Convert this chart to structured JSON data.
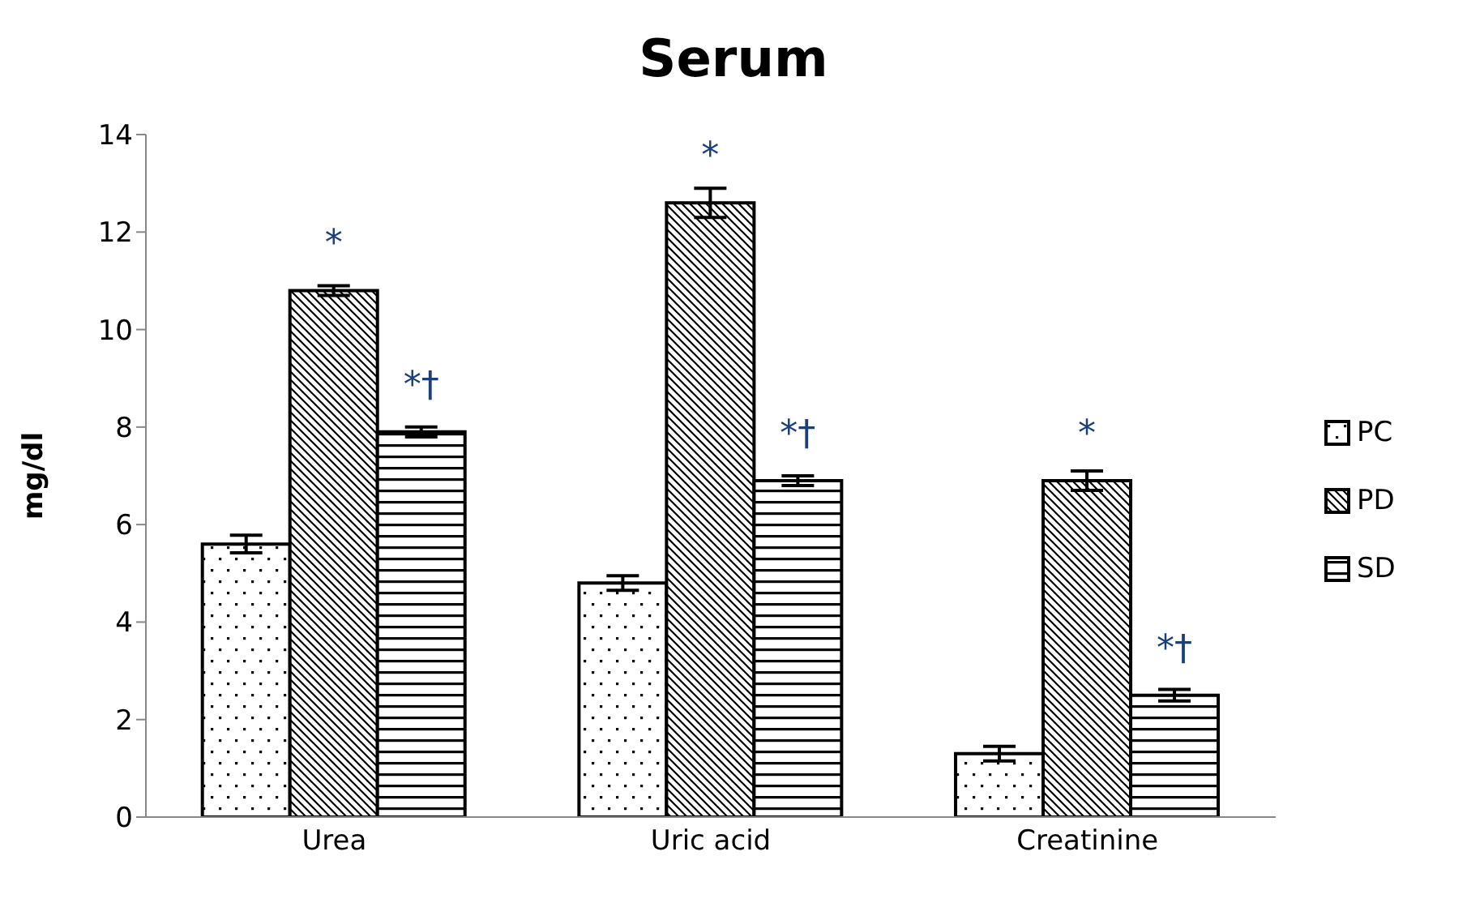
{
  "chart_data": {
    "type": "bar",
    "title": "Serum",
    "ylabel": "mg/dl",
    "categories": [
      "Urea",
      "Uric acid",
      "Creatinine"
    ],
    "series": [
      {
        "name": "PC",
        "color": "#000000",
        "values": [
          5.6,
          4.8,
          1.3
        ],
        "errors": [
          0.18,
          0.15,
          0.15
        ]
      },
      {
        "name": "PD",
        "color": "#000000",
        "values": [
          10.8,
          12.6,
          6.9
        ],
        "errors": [
          0.1,
          0.3,
          0.2
        ],
        "value_labels": [
          "*",
          "*",
          "*"
        ]
      },
      {
        "name": "SD",
        "color": "#000000",
        "values": [
          7.9,
          6.9,
          2.5
        ],
        "errors": [
          0.1,
          0.1,
          0.12
        ],
        "value_labels": [
          "*†",
          "*†",
          "*†"
        ]
      }
    ],
    "ylim": [
      0,
      14
    ],
    "yticks": [
      0,
      2,
      4,
      6,
      8,
      10,
      12,
      14
    ],
    "legend": "right"
  }
}
